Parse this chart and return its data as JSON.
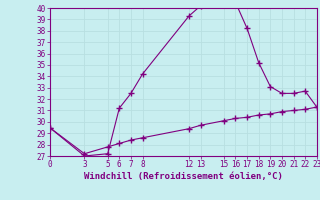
{
  "xlabel": "Windchill (Refroidissement éolien,°C)",
  "background_color": "#c8eef0",
  "grid_color": "#b8dfe1",
  "line_color": "#800080",
  "x_ticks": [
    0,
    3,
    5,
    6,
    7,
    8,
    12,
    13,
    15,
    16,
    17,
    18,
    19,
    20,
    21,
    22,
    23
  ],
  "windchill_x": [
    0,
    3,
    5,
    6,
    7,
    8,
    12,
    13,
    15,
    16,
    17,
    18,
    19,
    20,
    21,
    22,
    23
  ],
  "windchill_y": [
    29.5,
    27.0,
    27.2,
    31.2,
    32.5,
    34.2,
    39.3,
    40.2,
    40.5,
    40.5,
    38.2,
    35.2,
    33.1,
    32.5,
    32.5,
    32.7,
    31.3
  ],
  "temp_x": [
    0,
    3,
    5,
    6,
    7,
    8,
    12,
    13,
    15,
    16,
    17,
    18,
    19,
    20,
    21,
    22,
    23
  ],
  "temp_y": [
    29.5,
    27.2,
    27.8,
    28.1,
    28.4,
    28.6,
    29.4,
    29.7,
    30.1,
    30.3,
    30.4,
    30.6,
    30.7,
    30.9,
    31.0,
    31.1,
    31.3
  ],
  "ylim": [
    27,
    40
  ],
  "xlim": [
    0,
    23
  ]
}
